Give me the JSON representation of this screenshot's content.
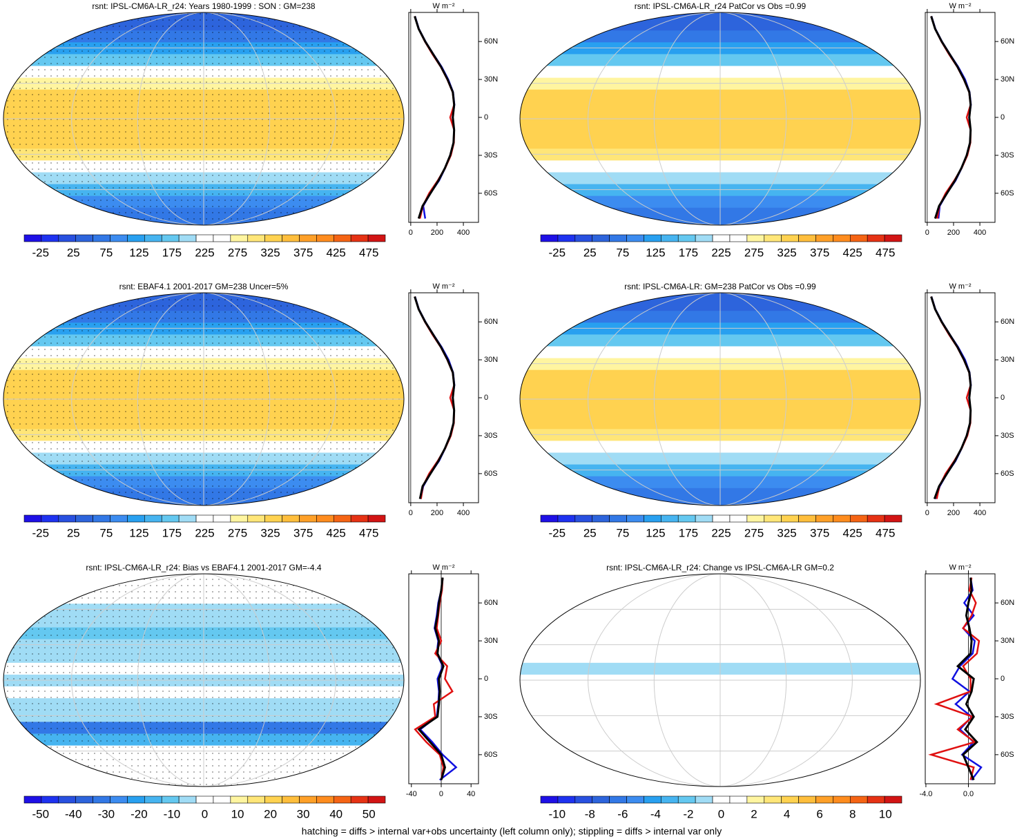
{
  "chart_data": [
    {
      "type": "map",
      "title": "rsnt: IPSL-CM6A-LR_r24: Years 1980-1999 : SON : GM=238",
      "clim": [
        -50,
        500
      ],
      "cticks": [
        -25,
        25,
        75,
        125,
        175,
        225,
        275,
        325,
        375,
        425,
        475
      ],
      "units": "W m⁻²",
      "y": [
        -80,
        -70,
        -60,
        -50,
        -40,
        -30,
        -20,
        -10,
        0,
        10,
        20,
        30,
        40,
        50,
        60,
        70,
        80
      ],
      "xlim": [
        -15,
        515
      ],
      "xticks": [
        0,
        200,
        400
      ],
      "ylim": [
        -83,
        83
      ],
      "yticks": [
        {
          "value": 60,
          "label": "60N"
        },
        {
          "value": 30,
          "label": "30N"
        },
        0,
        {
          "value": -30,
          "label": "30S"
        },
        {
          "value": -60,
          "label": "60S"
        }
      ],
      "series": [
        {
          "color": "#1010e0",
          "values": [
            110,
            95,
            150,
            215,
            262,
            300,
            325,
            330,
            318,
            332,
            322,
            285,
            235,
            172,
            112,
            62,
            32
          ]
        },
        {
          "color": "#e01010",
          "values": [
            70,
            92,
            140,
            205,
            262,
            305,
            328,
            330,
            300,
            330,
            318,
            278,
            228,
            165,
            108,
            60,
            30
          ]
        },
        {
          "color": "#000000",
          "values": [
            60,
            90,
            150,
            210,
            260,
            300,
            325,
            330,
            320,
            330,
            320,
            280,
            230,
            170,
            110,
            60,
            30
          ]
        }
      ]
    },
    {
      "type": "map",
      "title": "rsnt: IPSL-CM6A-LR_r24 PatCor vs Obs =0.99",
      "clim": [
        -50,
        500
      ],
      "cticks": [
        -25,
        25,
        75,
        125,
        175,
        225,
        275,
        325,
        375,
        425,
        475
      ],
      "units": "W m⁻²",
      "y": [
        -80,
        -70,
        -60,
        -50,
        -40,
        -30,
        -20,
        -10,
        0,
        10,
        20,
        30,
        40,
        50,
        60,
        70,
        80
      ],
      "xlim": [
        -15,
        515
      ],
      "xticks": [
        0,
        200,
        400
      ],
      "ylim": [
        -83,
        83
      ],
      "yticks": [
        {
          "value": 60,
          "label": "60N"
        },
        {
          "value": 30,
          "label": "30N"
        },
        0,
        {
          "value": -30,
          "label": "30S"
        },
        {
          "value": -60,
          "label": "60S"
        }
      ],
      "series": [
        {
          "color": "#1010e0",
          "values": [
            85,
            95,
            150,
            215,
            262,
            300,
            325,
            330,
            318,
            332,
            322,
            288,
            235,
            172,
            112,
            62,
            32
          ]
        },
        {
          "color": "#e01010",
          "values": [
            75,
            92,
            140,
            205,
            262,
            305,
            328,
            330,
            300,
            330,
            318,
            278,
            228,
            165,
            108,
            60,
            30
          ]
        },
        {
          "color": "#000000",
          "values": [
            60,
            90,
            150,
            210,
            260,
            300,
            325,
            330,
            320,
            330,
            320,
            280,
            230,
            170,
            110,
            60,
            30
          ]
        }
      ]
    },
    {
      "type": "map",
      "title": "rsnt: EBAF4.1 2001-2017 GM=238 Uncer=5%",
      "clim": [
        -50,
        500
      ],
      "cticks": [
        -25,
        25,
        75,
        125,
        175,
        225,
        275,
        325,
        375,
        425,
        475
      ],
      "units": "W m⁻²",
      "y": [
        -80,
        -70,
        -60,
        -50,
        -40,
        -30,
        -20,
        -10,
        0,
        10,
        20,
        30,
        40,
        50,
        60,
        70,
        80
      ],
      "xlim": [
        -15,
        515
      ],
      "xticks": [
        0,
        200,
        400
      ],
      "ylim": [
        -83,
        83
      ],
      "yticks": [
        {
          "value": 60,
          "label": "60N"
        },
        {
          "value": 30,
          "label": "30N"
        },
        0,
        {
          "value": -30,
          "label": "30S"
        },
        {
          "value": -60,
          "label": "60S"
        }
      ],
      "series": [
        {
          "color": "#1010e0",
          "values": [
            75,
            95,
            150,
            215,
            262,
            300,
            325,
            330,
            318,
            332,
            322,
            288,
            235,
            172,
            112,
            62,
            32
          ]
        },
        {
          "color": "#e01010",
          "values": [
            78,
            92,
            140,
            205,
            262,
            305,
            328,
            330,
            300,
            330,
            318,
            278,
            228,
            165,
            108,
            60,
            30
          ]
        },
        {
          "color": "#000000",
          "values": [
            70,
            90,
            150,
            210,
            260,
            300,
            325,
            330,
            320,
            330,
            320,
            280,
            230,
            170,
            110,
            60,
            30
          ]
        }
      ]
    },
    {
      "type": "map",
      "title": "rsnt: IPSL-CM6A-LR: GM=238 PatCor vs Obs =0.99",
      "clim": [
        -50,
        500
      ],
      "cticks": [
        -25,
        25,
        75,
        125,
        175,
        225,
        275,
        325,
        375,
        425,
        475
      ],
      "units": "W m⁻²",
      "y": [
        -80,
        -70,
        -60,
        -50,
        -40,
        -30,
        -20,
        -10,
        0,
        10,
        20,
        30,
        40,
        50,
        60,
        70,
        80
      ],
      "xlim": [
        -15,
        515
      ],
      "xticks": [
        0,
        200,
        400
      ],
      "ylim": [
        -83,
        83
      ],
      "yticks": [
        {
          "value": 60,
          "label": "60N"
        },
        {
          "value": 30,
          "label": "30N"
        },
        0,
        {
          "value": -30,
          "label": "30S"
        },
        {
          "value": -60,
          "label": "60S"
        }
      ],
      "series": [
        {
          "color": "#1010e0",
          "values": [
            65,
            95,
            150,
            215,
            262,
            300,
            325,
            330,
            318,
            332,
            322,
            288,
            235,
            172,
            112,
            62,
            32
          ]
        },
        {
          "color": "#e01010",
          "values": [
            72,
            92,
            140,
            205,
            262,
            305,
            328,
            330,
            300,
            330,
            318,
            278,
            228,
            165,
            108,
            60,
            30
          ]
        },
        {
          "color": "#000000",
          "values": [
            55,
            90,
            150,
            210,
            260,
            300,
            325,
            330,
            320,
            330,
            320,
            280,
            230,
            170,
            110,
            60,
            30
          ]
        }
      ]
    },
    {
      "type": "map",
      "title": "rsnt: IPSL-CM6A-LR_r24: Bias vs EBAF4.1 2001-2017  GM=-4.4",
      "clim": [
        -55,
        55
      ],
      "cticks": [
        -50,
        -40,
        -30,
        -20,
        -10,
        0,
        10,
        20,
        30,
        40,
        50
      ],
      "units": "W m⁻²",
      "y": [
        -80,
        -70,
        -60,
        -50,
        -40,
        -30,
        -20,
        -10,
        0,
        10,
        20,
        30,
        40,
        50,
        60,
        70,
        80
      ],
      "xlim": [
        -43.5,
        50
      ],
      "xticks": [
        -40,
        0,
        40
      ],
      "ylim": [
        -83,
        83
      ],
      "yticks": [
        {
          "value": 60,
          "label": "60N"
        },
        {
          "value": 30,
          "label": "30N"
        },
        0,
        {
          "value": -30,
          "label": "30S"
        },
        {
          "value": -60,
          "label": "60S"
        }
      ],
      "series": [
        {
          "color": "#1010e0",
          "values": [
            -2,
            20,
            2,
            -12,
            -28,
            -6,
            -4,
            -3,
            -5,
            2,
            -6,
            -4,
            -9,
            -6,
            -4,
            0,
            2
          ]
        },
        {
          "color": "#e01010",
          "values": [
            0,
            3,
            -2,
            -20,
            -35,
            -8,
            -10,
            15,
            5,
            8,
            -8,
            0,
            -6,
            -4,
            -2,
            1,
            2
          ]
        },
        {
          "color": "#000000",
          "values": [
            0,
            5,
            0,
            -15,
            -30,
            -5,
            -3,
            -2,
            -3,
            3,
            -5,
            -3,
            -8,
            -5,
            -3,
            0,
            2
          ]
        }
      ]
    },
    {
      "type": "map",
      "title": "rsnt: IPSL-CM6A-LR_r24: Change vs IPSL-CM6A-LR GM=0.2",
      "clim": [
        -11,
        11
      ],
      "cticks": [
        -10,
        -8,
        -6,
        -4,
        -2,
        0,
        2,
        4,
        6,
        8,
        10
      ],
      "units": "W m⁻²",
      "y": [
        -80,
        -70,
        -60,
        -50,
        -40,
        -30,
        -20,
        -10,
        0,
        10,
        20,
        30,
        40,
        50,
        60,
        70,
        80
      ],
      "xlim": [
        -4.06,
        2.5
      ],
      "xticks": [
        {
          "value": -4,
          "label": "-4.0"
        },
        {
          "value": 0,
          "label": "0.0"
        }
      ],
      "ylim": [
        -83,
        83
      ],
      "yticks": [
        {
          "value": 60,
          "label": "60N"
        },
        {
          "value": 30,
          "label": "30N"
        },
        0,
        {
          "value": -30,
          "label": "30S"
        },
        {
          "value": -60,
          "label": "60S"
        }
      ],
      "series": [
        {
          "color": "#1010e0",
          "values": [
            0.3,
            1.2,
            -0.6,
            0.5,
            -0.8,
            0.3,
            -1.2,
            0.1,
            -1.5,
            -0.8,
            0.4,
            0.6,
            -0.5,
            0.5,
            -0.4,
            0.4,
            0.2
          ]
        },
        {
          "color": "#e01010",
          "values": [
            0.2,
            0.5,
            -3.5,
            0.6,
            -1.0,
            0.4,
            -3.0,
            0.2,
            0.2,
            -0.5,
            0.8,
            1.0,
            -0.5,
            0.3,
            0.7,
            0.1,
            0.3
          ]
        },
        {
          "color": "#000000",
          "values": [
            0.5,
            0,
            -0.5,
            0.8,
            -0.3,
            0.5,
            -0.2,
            0.3,
            0.5,
            -1.0,
            0.2,
            0.3,
            0.1,
            -0.2,
            0,
            0.3,
            0.2
          ]
        }
      ]
    }
  ],
  "footer": "hatching = diffs > internal var+obs uncertainty (left column only); stippling = diffs > internal var only"
}
